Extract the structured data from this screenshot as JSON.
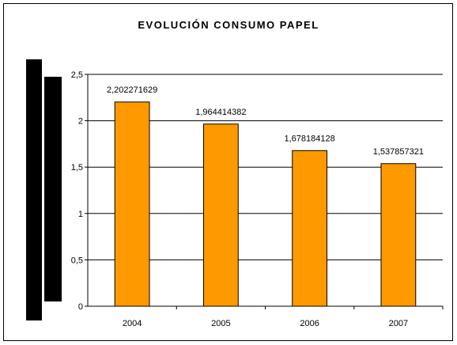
{
  "chart_data": {
    "type": "bar",
    "title": "EVOLUCIÓN CONSUMO PAPEL",
    "categories": [
      "2004",
      "2005",
      "2006",
      "2007"
    ],
    "values": [
      2.202271629,
      1.964414382,
      1.678184128,
      1.537857321
    ],
    "data_labels": [
      "2,202271629",
      "1,964414382",
      "1,678184128",
      "1,537857321"
    ],
    "y_ticks": [
      "0",
      "0,5",
      "1",
      "1,5",
      "2",
      "2,5"
    ],
    "ylim": [
      0,
      2.5
    ],
    "grid": true,
    "legend": "none",
    "xlabel": "",
    "ylabel": ""
  },
  "colors": {
    "bar": "#FF9900",
    "bar_border": "#000000",
    "grid": "#000000",
    "redaction": "#000000"
  }
}
